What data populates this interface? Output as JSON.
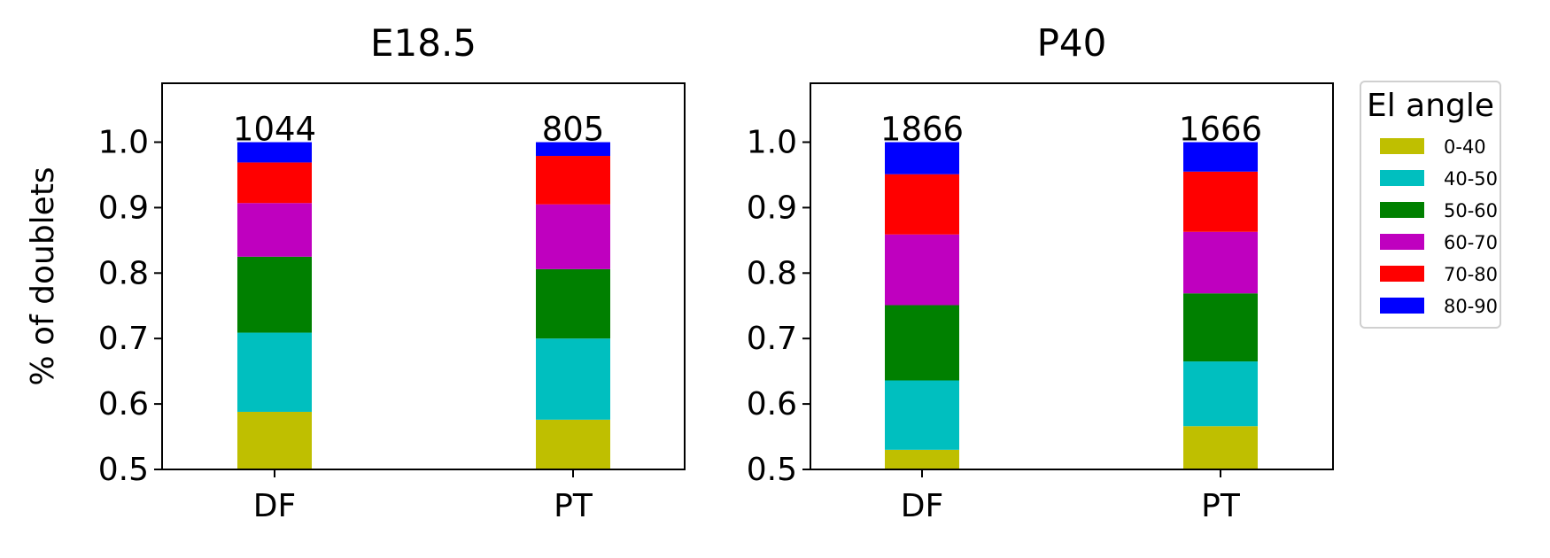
{
  "chart_data": [
    {
      "type": "bar",
      "stacked": true,
      "title": "E18.5",
      "xlabel": "",
      "ylabel": "% of doublets",
      "ylim": [
        0.5,
        1.09
      ],
      "yticks": [
        "0.5",
        "0.6",
        "0.7",
        "0.8",
        "0.9",
        "1.0"
      ],
      "categories": [
        "DF",
        "PT"
      ],
      "counts": [
        "1044",
        "805"
      ],
      "series": [
        {
          "name": "0-40",
          "values": [
            0.588,
            0.576
          ]
        },
        {
          "name": "40-50",
          "values": [
            0.121,
            0.124
          ]
        },
        {
          "name": "50-60",
          "values": [
            0.116,
            0.106
          ]
        },
        {
          "name": "60-70",
          "values": [
            0.082,
            0.099
          ]
        },
        {
          "name": "70-80",
          "values": [
            0.062,
            0.074
          ]
        },
        {
          "name": "80-90",
          "values": [
            0.031,
            0.021
          ]
        }
      ]
    },
    {
      "type": "bar",
      "stacked": true,
      "title": "P40",
      "xlabel": "",
      "ylabel": "",
      "ylim": [
        0.5,
        1.09
      ],
      "yticks": [
        "0.5",
        "0.6",
        "0.7",
        "0.8",
        "0.9",
        "1.0"
      ],
      "categories": [
        "DF",
        "PT"
      ],
      "counts": [
        "1866",
        "1666"
      ],
      "series": [
        {
          "name": "0-40",
          "values": [
            0.53,
            0.566
          ]
        },
        {
          "name": "40-50",
          "values": [
            0.106,
            0.099
          ]
        },
        {
          "name": "50-60",
          "values": [
            0.115,
            0.104
          ]
        },
        {
          "name": "60-70",
          "values": [
            0.108,
            0.094
          ]
        },
        {
          "name": "70-80",
          "values": [
            0.092,
            0.092
          ]
        },
        {
          "name": "80-90",
          "values": [
            0.049,
            0.045
          ]
        }
      ]
    }
  ],
  "legend": {
    "title": "El angle",
    "placement": "right",
    "entries": [
      "0-40",
      "40-50",
      "50-60",
      "60-70",
      "70-80",
      "80-90"
    ]
  },
  "colors": [
    "#bfbf00",
    "#00bfbf",
    "#008000",
    "#bf00bf",
    "#ff0000",
    "#0000ff"
  ]
}
